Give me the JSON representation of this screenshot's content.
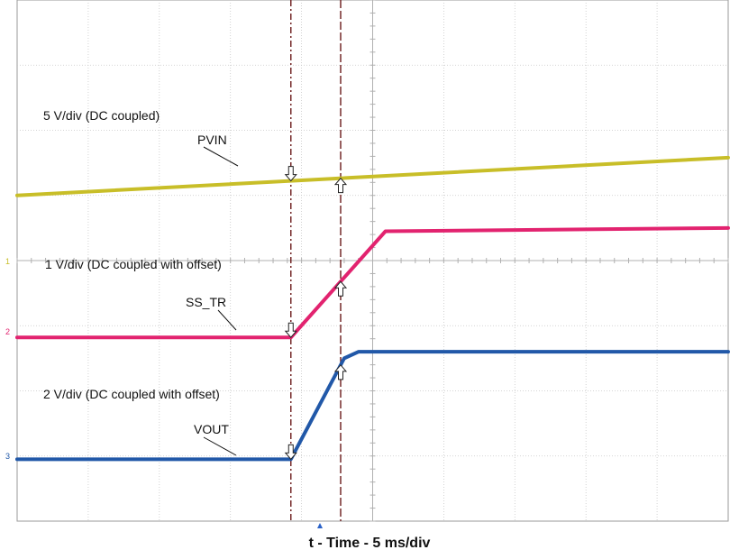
{
  "chart_data": {
    "type": "line",
    "title": "",
    "xlabel": "t - Time - 5 ms/div",
    "ylabel": "",
    "grid": true,
    "divisions": {
      "x": 10,
      "y": 8
    },
    "time_per_div_ms": 5,
    "xlim_div": [
      0,
      10
    ],
    "ylim_div": [
      0,
      8
    ],
    "colors": {
      "PVIN": "#c8be28",
      "SS_TR": "#e2236f",
      "VOUT": "#2158a8"
    },
    "scale_labels": [
      "5 V/div (DC coupled)",
      "1 V/div (DC coupled with offset)",
      "2 V/div (DC coupled with offset)"
    ],
    "series": [
      {
        "name": "PVIN",
        "x_div": [
          0,
          10
        ],
        "y_div": [
          5.0,
          5.58
        ]
      },
      {
        "name": "SS_TR",
        "x_div": [
          0,
          3.85,
          5.18,
          10
        ],
        "y_div": [
          2.82,
          2.82,
          4.45,
          4.5
        ]
      },
      {
        "name": "VOUT",
        "x_div": [
          0,
          3.85,
          4.6,
          4.8,
          10
        ],
        "y_div": [
          0.95,
          0.95,
          2.5,
          2.6,
          2.6
        ]
      }
    ],
    "cursor_lines_div": [
      3.85,
      4.55
    ],
    "markers": [
      {
        "series": "PVIN",
        "x_div": 3.85,
        "dir": "down"
      },
      {
        "series": "PVIN",
        "x_div": 4.55,
        "dir": "up"
      },
      {
        "series": "SS_TR",
        "x_div": 3.85,
        "dir": "down"
      },
      {
        "series": "SS_TR",
        "x_div": 4.55,
        "dir": "up"
      },
      {
        "series": "VOUT",
        "x_div": 3.85,
        "dir": "down"
      },
      {
        "series": "VOUT",
        "x_div": 4.55,
        "dir": "up"
      }
    ],
    "channel_tags": [
      "1",
      "2",
      "3"
    ]
  }
}
